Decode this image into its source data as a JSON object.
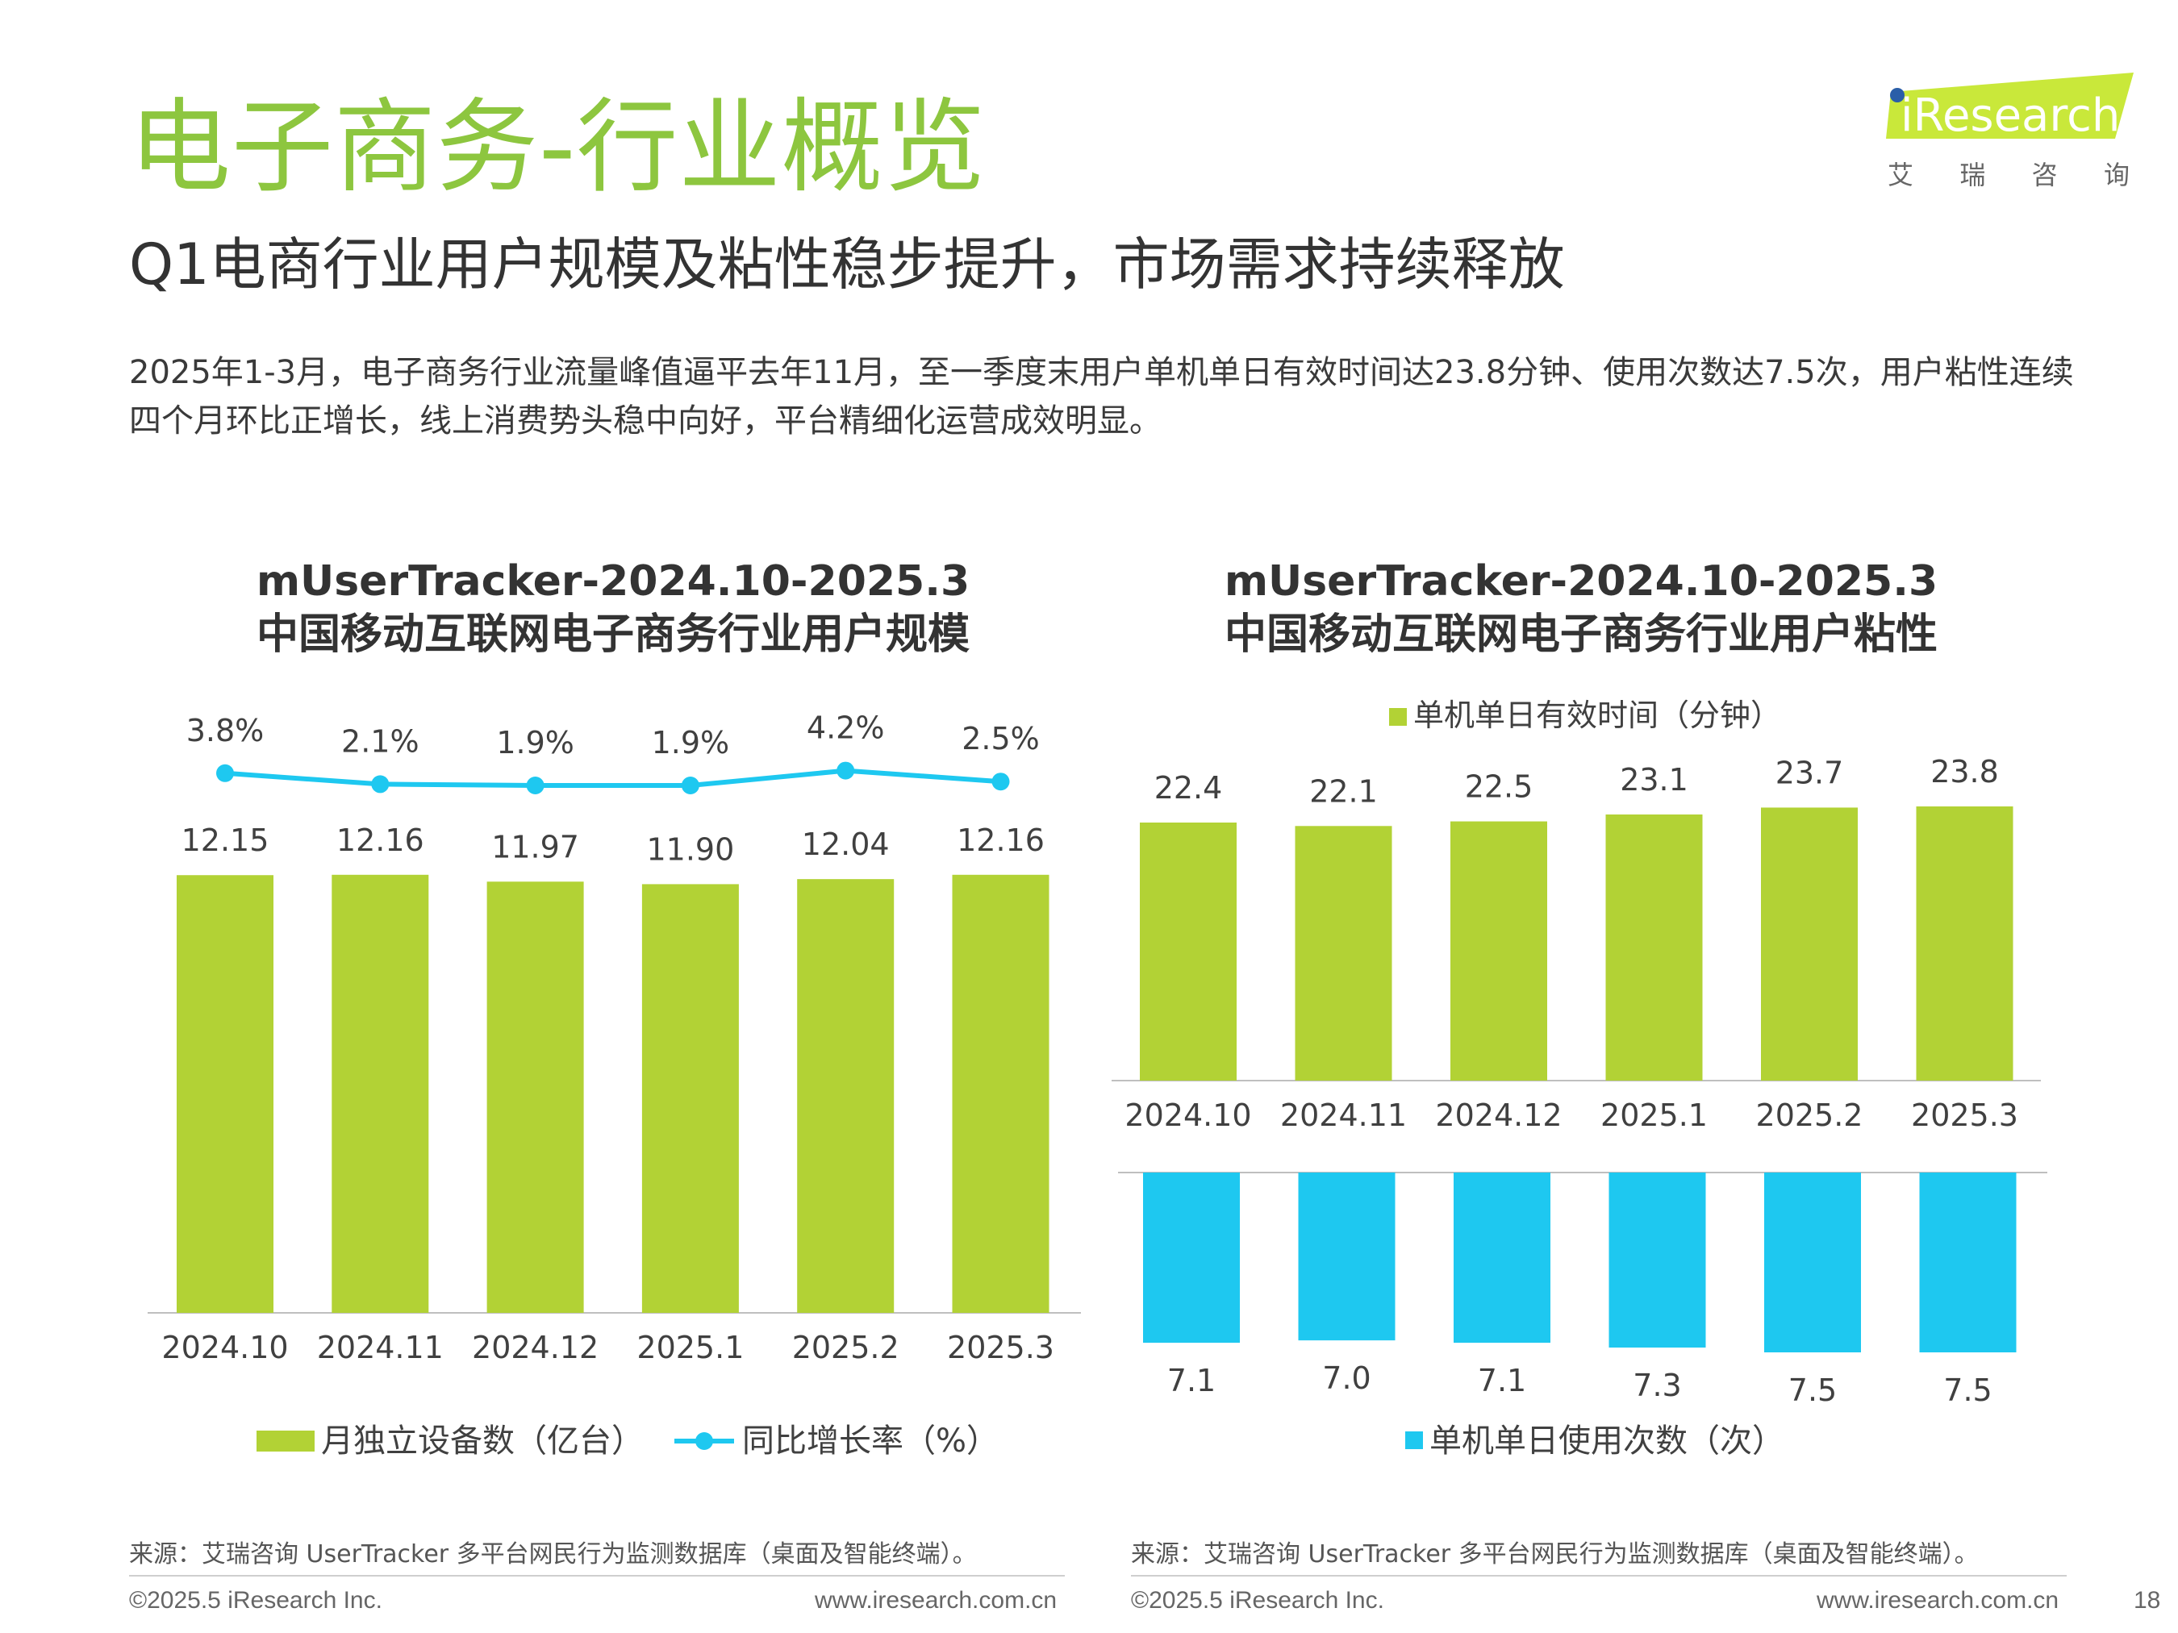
{
  "header": {
    "title": "电子商务-行业概览",
    "subtitle": "Q1电商行业用户规模及粘性稳步提升，市场需求持续释放",
    "summary": "2025年1-3月，电子商务行业流量峰值逼平去年11月，至一季度末用户单机单日有效时间达23.8分钟、使用次数达7.5次，用户粘性连续四个月环比正增长，线上消费势头稳中向好，平台精细化运营成效明显。"
  },
  "logo": {
    "text": "iResearch",
    "cn": [
      "艾",
      "瑞",
      "咨",
      "询"
    ],
    "color": "#c9e83a"
  },
  "colors": {
    "title_green": "#8dc63f",
    "bar_green": "#b2d235",
    "line_blue": "#1ec8f0",
    "bar_blue": "#1ec8f0"
  },
  "chart_data": [
    {
      "type": "bar+line",
      "title_line1": "mUserTracker-2024.10-2025.3",
      "title_line2": "中国移动互联网电子商务行业用户规模",
      "categories": [
        "2024.10",
        "2024.11",
        "2024.12",
        "2025.1",
        "2025.2",
        "2025.3"
      ],
      "series": [
        {
          "name": "月独立设备数（亿台）",
          "kind": "bar",
          "values": [
            12.15,
            12.16,
            11.97,
            11.9,
            12.04,
            12.16
          ],
          "labels": [
            "12.15",
            "12.16",
            "11.97",
            "11.90",
            "12.04",
            "12.16"
          ]
        },
        {
          "name": "同比增长率（%）",
          "kind": "line",
          "values": [
            3.8,
            2.1,
            1.9,
            1.9,
            4.2,
            2.5
          ],
          "labels": [
            "3.8%",
            "2.1%",
            "1.9%",
            "1.9%",
            "4.2%",
            "2.5%"
          ]
        }
      ],
      "legend": "bottom"
    },
    {
      "type": "bar",
      "title_line1": "mUserTracker-2024.10-2025.3",
      "title_line2": "中国移动互联网电子商务行业用户粘性",
      "categories": [
        "2024.10",
        "2024.11",
        "2024.12",
        "2025.1",
        "2025.2",
        "2025.3"
      ],
      "series": [
        {
          "name": "单机单日有效时间（分钟）",
          "kind": "bar-up",
          "values": [
            22.4,
            22.1,
            22.5,
            23.1,
            23.7,
            23.8
          ],
          "labels": [
            "22.4",
            "22.1",
            "22.5",
            "23.1",
            "23.7",
            "23.8"
          ]
        },
        {
          "name": "单机单日使用次数（次）",
          "kind": "bar-down",
          "values": [
            7.1,
            7.0,
            7.1,
            7.3,
            7.5,
            7.5
          ],
          "labels": [
            "7.1",
            "7.0",
            "7.1",
            "7.3",
            "7.5",
            "7.5"
          ]
        }
      ],
      "legend": "top (time), bottom (count)"
    }
  ],
  "footer": {
    "source": "来源：艾瑞咨询 UserTracker 多平台网民行为监测数据库（桌面及智能终端）。",
    "copyright": "©2025.5 iResearch Inc.",
    "website": "www.iresearch.com.cn",
    "page_number": "18"
  }
}
